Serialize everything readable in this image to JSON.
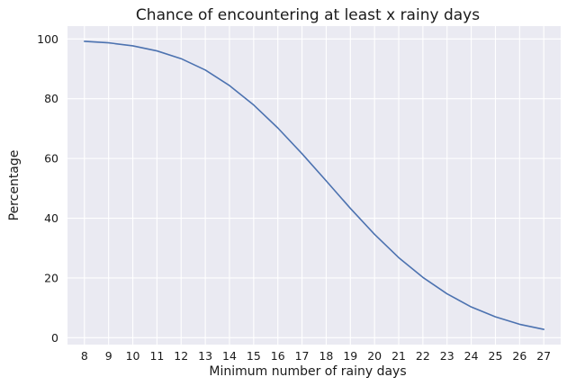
{
  "chart_data": {
    "type": "line",
    "title": "Chance of encountering at least x rainy days",
    "xlabel": "Minimum number of rainy days",
    "ylabel": "Percentage",
    "x": [
      8,
      9,
      10,
      11,
      12,
      13,
      14,
      15,
      16,
      17,
      18,
      19,
      20,
      21,
      22,
      23,
      24,
      25,
      26,
      27
    ],
    "series": [
      {
        "name": "Percentage",
        "values": [
          99.2,
          98.7,
          97.7,
          96.0,
          93.4,
          89.6,
          84.4,
          77.9,
          70.2,
          61.6,
          52.5,
          43.3,
          34.6,
          26.8,
          20.2,
          14.7,
          10.3,
          7.0,
          4.5,
          2.8
        ]
      }
    ],
    "xlim": [
      7.3,
      27.7
    ],
    "ylim": [
      -2.3,
      104.3
    ],
    "yticks": [
      0,
      20,
      40,
      60,
      80,
      100
    ],
    "xticks": [
      8,
      9,
      10,
      11,
      12,
      13,
      14,
      15,
      16,
      17,
      18,
      19,
      20,
      21,
      22,
      23,
      24,
      25,
      26,
      27
    ],
    "grid": true,
    "colors": {
      "background": "#eaeaf2",
      "grid": "#ffffff",
      "line": "#4c72b0"
    }
  }
}
